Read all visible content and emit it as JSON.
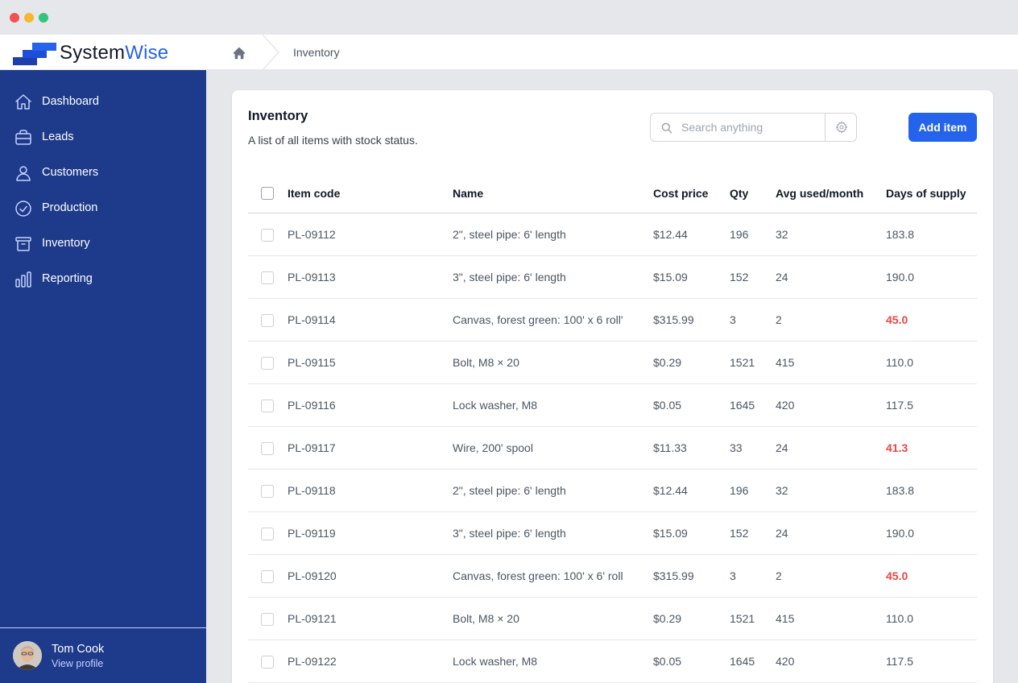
{
  "app": {
    "brand_part1": "System",
    "brand_part2": "Wise",
    "accent_color": "#2563eb",
    "sidebar_color": "#1e3a8a"
  },
  "breadcrumb": {
    "home_icon": "home-icon",
    "current": "Inventory"
  },
  "sidebar": {
    "items": [
      {
        "label": "Dashboard",
        "icon": "home-icon"
      },
      {
        "label": "Leads",
        "icon": "briefcase-icon"
      },
      {
        "label": "Customers",
        "icon": "user-icon"
      },
      {
        "label": "Production",
        "icon": "check-circle-icon"
      },
      {
        "label": "Inventory",
        "icon": "archive-icon"
      },
      {
        "label": "Reporting",
        "icon": "bar-chart-icon"
      }
    ],
    "user": {
      "name": "Tom Cook",
      "link": "View profile"
    }
  },
  "main": {
    "title": "Inventory",
    "subtitle": "A list of all items with stock status.",
    "search": {
      "placeholder": "Search anything"
    },
    "add_button": "Add item",
    "low_supply_color": "#ef4444",
    "columns": [
      "Item code",
      "Name",
      "Cost price",
      "Qty",
      "Avg used/month",
      "Days of supply"
    ],
    "rows": [
      {
        "code": "PL-09112",
        "name": "2\", steel pipe: 6' length",
        "cost": "$12.44",
        "qty": "196",
        "avg": "32",
        "days": "183.8",
        "low": false
      },
      {
        "code": "PL-09113",
        "name": "3\", steel pipe: 6' length",
        "cost": "$15.09",
        "qty": "152",
        "avg": "24",
        "days": "190.0",
        "low": false
      },
      {
        "code": "PL-09114",
        "name": "Canvas, forest green: 100' x 6 roll'",
        "cost": "$315.99",
        "qty": "3",
        "avg": "2",
        "days": "45.0",
        "low": true
      },
      {
        "code": "PL-09115",
        "name": "Bolt, M8 × 20",
        "cost": "$0.29",
        "qty": "1521",
        "avg": "415",
        "days": "110.0",
        "low": false
      },
      {
        "code": "PL-09116",
        "name": "Lock washer, M8",
        "cost": "$0.05",
        "qty": "1645",
        "avg": "420",
        "days": "117.5",
        "low": false
      },
      {
        "code": "PL-09117",
        "name": "Wire, 200' spool",
        "cost": "$11.33",
        "qty": "33",
        "avg": "24",
        "days": "41.3",
        "low": true
      },
      {
        "code": "PL-09118",
        "name": "2\", steel pipe: 6' length",
        "cost": "$12.44",
        "qty": "196",
        "avg": "32",
        "days": "183.8",
        "low": false
      },
      {
        "code": "PL-09119",
        "name": "3\", steel pipe: 6' length",
        "cost": "$15.09",
        "qty": "152",
        "avg": "24",
        "days": "190.0",
        "low": false
      },
      {
        "code": "PL-09120",
        "name": "Canvas, forest green: 100' x 6' roll",
        "cost": "$315.99",
        "qty": "3",
        "avg": "2",
        "days": "45.0",
        "low": true
      },
      {
        "code": "PL-09121",
        "name": "Bolt, M8 × 20",
        "cost": "$0.29",
        "qty": "1521",
        "avg": "415",
        "days": "110.0",
        "low": false
      },
      {
        "code": "PL-09122",
        "name": "Lock washer, M8",
        "cost": "$0.05",
        "qty": "1645",
        "avg": "420",
        "days": "117.5",
        "low": false
      }
    ]
  }
}
